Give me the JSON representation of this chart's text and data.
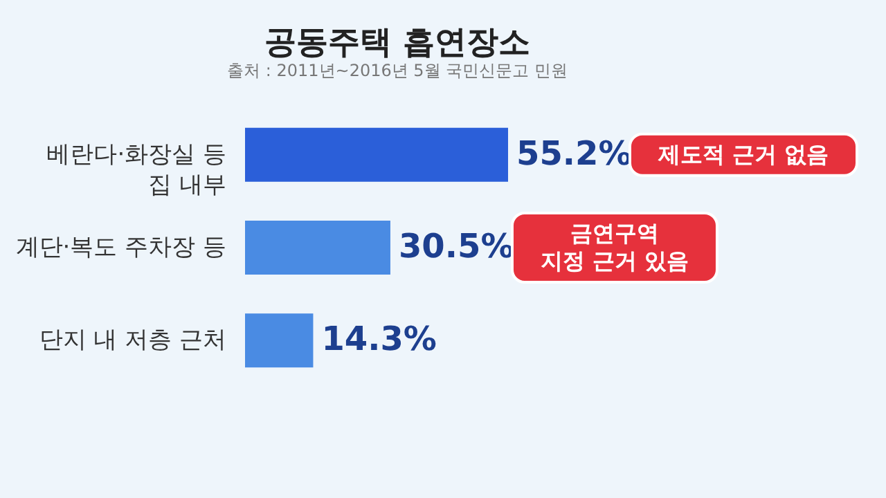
{
  "chart_data": {
    "type": "bar",
    "orientation": "horizontal",
    "title": "공동주택 흡연장소",
    "subtitle": "출처 : 2011년~2016년 5월 국민신문고 민원",
    "categories": [
      "베란다·화장실 등\n집 내부",
      "계단·복도 주차장 등",
      "단지 내 저층 근처"
    ],
    "values": [
      55.2,
      30.5,
      14.3
    ],
    "colors": [
      "#2b5fd9",
      "#4a8be3",
      "#4a8be3"
    ],
    "value_labels": [
      "55.2%",
      "30.5%",
      "14.3%"
    ],
    "annotations": [
      "제도적 근거 없음",
      "금연구역\n지정 근거 있음"
    ],
    "grid": false,
    "legend": false
  }
}
